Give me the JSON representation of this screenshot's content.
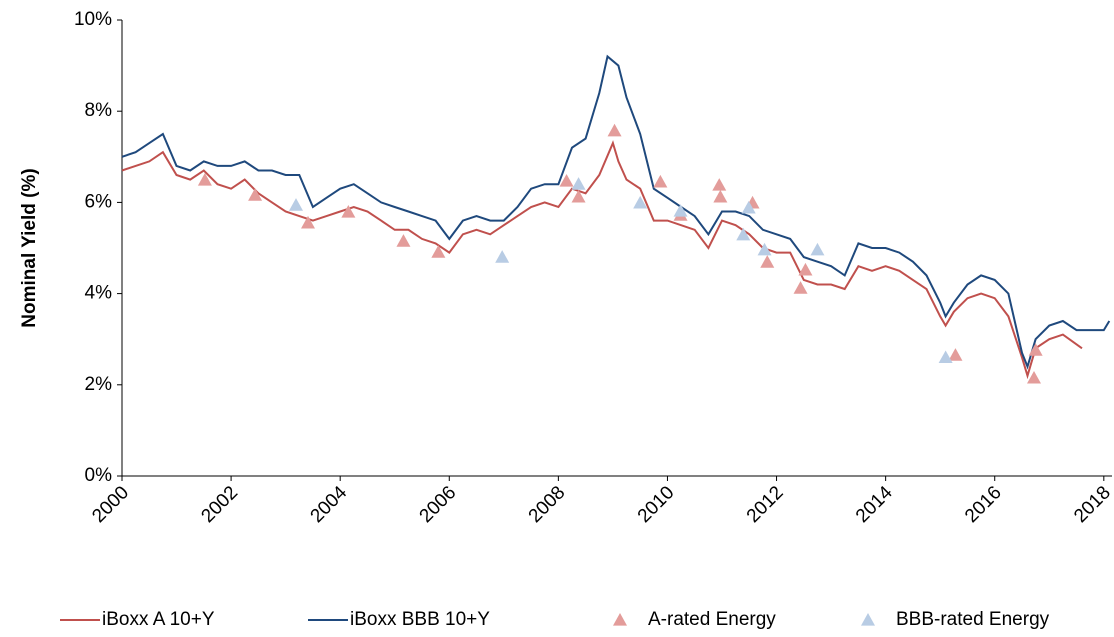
{
  "chart_data": {
    "type": "line",
    "y_label": "Nominal Yield (%)",
    "xlim": [
      2000,
      2018.15
    ],
    "xticks": [
      2000,
      2002,
      2004,
      2006,
      2008,
      2010,
      2012,
      2014,
      2016,
      2018
    ],
    "ylim": [
      0,
      10
    ],
    "yticks": [
      {
        "value": 0,
        "label": "0%"
      },
      {
        "value": 2,
        "label": "2%"
      },
      {
        "value": 4,
        "label": "4%"
      },
      {
        "value": 6,
        "label": "6%"
      },
      {
        "value": 8,
        "label": "8%"
      },
      {
        "value": 10,
        "label": "10%"
      }
    ],
    "grid": false,
    "legend": "bottom",
    "series": [
      {
        "name": "iBoxx A 10+Y",
        "color": "#c0504d",
        "kind": "line",
        "x": [
          2000,
          2000.25,
          2000.5,
          2000.75,
          2001,
          2001.25,
          2001.5,
          2001.75,
          2002,
          2002.25,
          2002.5,
          2002.75,
          2003,
          2003.25,
          2003.5,
          2003.75,
          2004,
          2004.25,
          2004.5,
          2004.75,
          2005,
          2005.25,
          2005.5,
          2005.75,
          2006,
          2006.25,
          2006.5,
          2006.75,
          2007,
          2007.25,
          2007.5,
          2007.75,
          2008,
          2008.25,
          2008.5,
          2008.75,
          2009,
          2009.1,
          2009.25,
          2009.5,
          2009.75,
          2010,
          2010.25,
          2010.5,
          2010.75,
          2011,
          2011.25,
          2011.5,
          2011.75,
          2012,
          2012.25,
          2012.5,
          2012.75,
          2013,
          2013.25,
          2013.5,
          2013.75,
          2014,
          2014.25,
          2014.5,
          2014.75,
          2015,
          2015.1,
          2015.25,
          2015.5,
          2015.75,
          2016,
          2016.25,
          2016.5,
          2016.6,
          2016.75,
          2017,
          2017.25,
          2017.6
        ],
        "values": [
          6.7,
          6.8,
          6.9,
          7.1,
          6.6,
          6.5,
          6.7,
          6.4,
          6.3,
          6.5,
          6.2,
          6.0,
          5.8,
          5.7,
          5.6,
          5.7,
          5.8,
          5.9,
          5.8,
          5.6,
          5.4,
          5.4,
          5.2,
          5.1,
          4.9,
          5.3,
          5.4,
          5.3,
          5.5,
          5.7,
          5.9,
          6.0,
          5.9,
          6.3,
          6.2,
          6.6,
          7.3,
          6.9,
          6.5,
          6.3,
          5.6,
          5.6,
          5.5,
          5.4,
          5.0,
          5.6,
          5.5,
          5.3,
          5.0,
          4.9,
          4.9,
          4.3,
          4.2,
          4.2,
          4.1,
          4.6,
          4.5,
          4.6,
          4.5,
          4.3,
          4.1,
          3.5,
          3.3,
          3.6,
          3.9,
          4.0,
          3.9,
          3.5,
          2.6,
          2.2,
          2.8,
          3.0,
          3.1,
          2.8
        ]
      },
      {
        "name": "iBoxx BBB 10+Y",
        "color": "#1f497d",
        "kind": "line",
        "x": [
          2000,
          2000.25,
          2000.5,
          2000.75,
          2001,
          2001.25,
          2001.5,
          2001.75,
          2002,
          2002.25,
          2002.5,
          2002.75,
          2003,
          2003.25,
          2003.5,
          2003.75,
          2004,
          2004.25,
          2004.5,
          2004.75,
          2005,
          2005.25,
          2005.5,
          2005.75,
          2006,
          2006.25,
          2006.5,
          2006.75,
          2007,
          2007.25,
          2007.5,
          2007.75,
          2008,
          2008.25,
          2008.5,
          2008.75,
          2008.9,
          2009.1,
          2009.25,
          2009.5,
          2009.75,
          2010,
          2010.25,
          2010.5,
          2010.75,
          2011,
          2011.25,
          2011.5,
          2011.75,
          2012,
          2012.25,
          2012.5,
          2012.75,
          2013,
          2013.25,
          2013.5,
          2013.75,
          2014,
          2014.25,
          2014.5,
          2014.75,
          2015,
          2015.1,
          2015.25,
          2015.5,
          2015.75,
          2016,
          2016.25,
          2016.5,
          2016.6,
          2016.75,
          2017,
          2017.25,
          2017.5,
          2017.75,
          2018,
          2018.1
        ],
        "values": [
          7.0,
          7.1,
          7.3,
          7.5,
          6.8,
          6.7,
          6.9,
          6.8,
          6.8,
          6.9,
          6.7,
          6.7,
          6.6,
          6.6,
          5.9,
          6.1,
          6.3,
          6.4,
          6.2,
          6.0,
          5.9,
          5.8,
          5.7,
          5.6,
          5.2,
          5.6,
          5.7,
          5.6,
          5.6,
          5.9,
          6.3,
          6.4,
          6.4,
          7.2,
          7.4,
          8.4,
          9.2,
          9.0,
          8.3,
          7.5,
          6.3,
          6.1,
          5.9,
          5.7,
          5.3,
          5.8,
          5.8,
          5.7,
          5.4,
          5.3,
          5.2,
          4.8,
          4.7,
          4.6,
          4.4,
          5.1,
          5.0,
          5.0,
          4.9,
          4.7,
          4.4,
          3.8,
          3.5,
          3.8,
          4.2,
          4.4,
          4.3,
          4.0,
          2.7,
          2.4,
          3.0,
          3.3,
          3.4,
          3.2,
          3.2,
          3.2,
          3.4
        ]
      },
      {
        "name": "A-rated Energy",
        "color": "#e39c9a",
        "kind": "scatter",
        "x": [
          2001.52,
          2002.44,
          2003.41,
          2004.15,
          2005.16,
          2005.8,
          2008.15,
          2008.37,
          2009.03,
          2009.87,
          2010.24,
          2010.95,
          2010.97,
          2011.56,
          2011.83,
          2012.44,
          2012.53,
          2015.28,
          2016.72,
          2016.75
        ],
        "values": [
          6.49,
          6.16,
          5.55,
          5.79,
          5.15,
          4.91,
          6.47,
          6.12,
          7.57,
          6.45,
          5.72,
          6.38,
          6.12,
          5.99,
          4.69,
          4.12,
          4.52,
          2.65,
          2.15,
          2.76
        ]
      },
      {
        "name": "BBB-rated Energy",
        "color": "#b8cce4",
        "kind": "scatter",
        "x": [
          2003.19,
          2006.97,
          2008.37,
          2009.5,
          2010.24,
          2011.39,
          2011.49,
          2011.78,
          2012.75,
          2015.1
        ],
        "values": [
          5.94,
          4.8,
          6.4,
          5.99,
          5.81,
          5.29,
          5.88,
          4.96,
          4.96,
          2.6
        ]
      }
    ]
  }
}
